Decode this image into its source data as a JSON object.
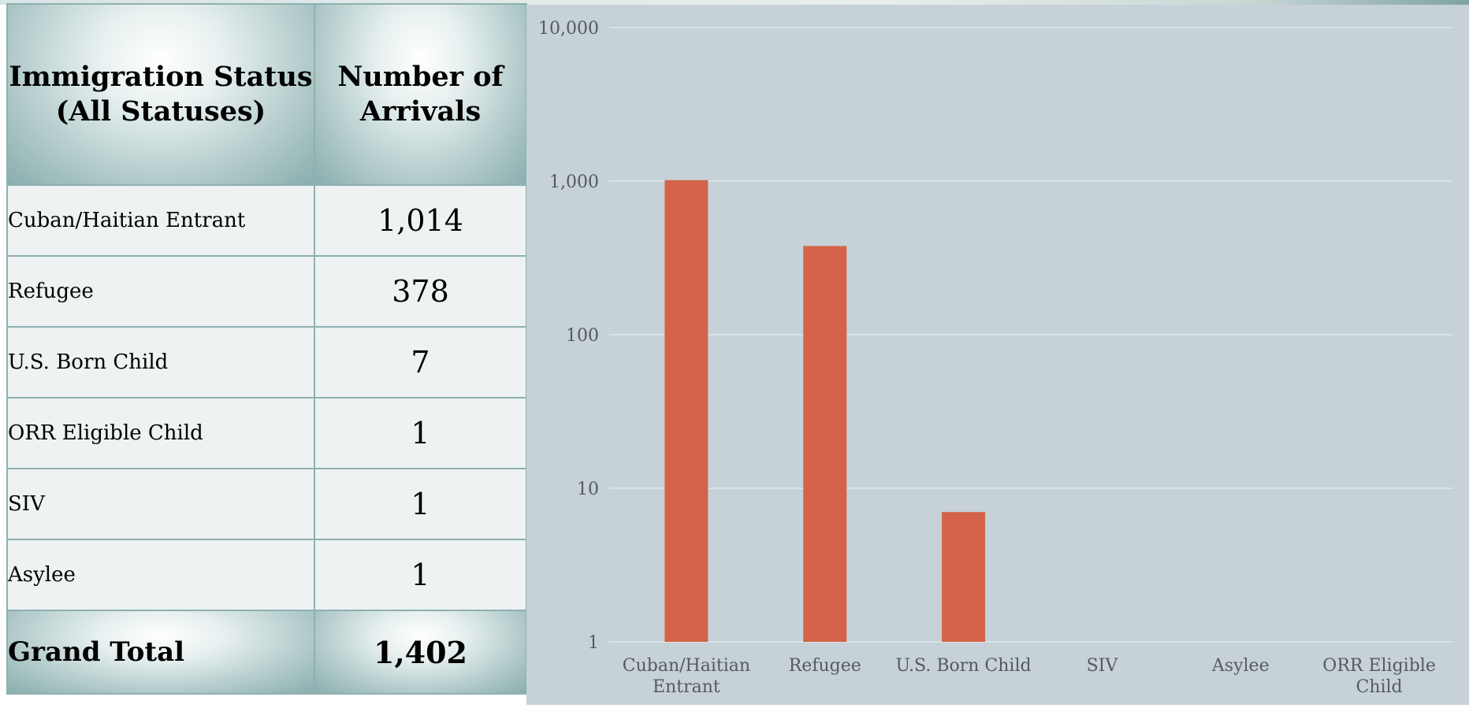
{
  "table": {
    "header_status": "Immigration Status (All Statuses)",
    "header_count": "Number of Arrivals",
    "rows": [
      {
        "status": "Cuban/Haitian Entrant",
        "count": "1,014"
      },
      {
        "status": "Refugee",
        "count": "378"
      },
      {
        "status": "U.S. Born Child",
        "count": "7"
      },
      {
        "status": "ORR Eligible Child",
        "count": "1"
      },
      {
        "status": "SIV",
        "count": "1"
      },
      {
        "status": "Asylee",
        "count": "1"
      }
    ],
    "total_label": "Grand Total",
    "total_value": "1,402"
  },
  "chart_data": {
    "type": "bar",
    "categories": [
      "Cuban/Haitian Entrant",
      "Refugee",
      "U.S. Born Child",
      "SIV",
      "Asylee",
      "ORR Eligible Child"
    ],
    "category_lines": [
      [
        "Cuban/Haitian",
        "Entrant"
      ],
      [
        "Refugee"
      ],
      [
        "U.S. Born Child"
      ],
      [
        "SIV"
      ],
      [
        "Asylee"
      ],
      [
        "ORR Eligible",
        "Child"
      ]
    ],
    "values": [
      1014,
      378,
      7,
      1,
      1,
      1
    ],
    "y_scale": "log",
    "ylim": [
      1,
      10000
    ],
    "y_ticks": [
      1,
      10,
      100,
      1000,
      10000
    ],
    "y_tick_labels": [
      "1",
      "10",
      "100",
      "1,000",
      "10,000"
    ],
    "grid": true,
    "legend": "none",
    "bar_color": "#d46349",
    "background_color": "#c6d1d8",
    "title": "",
    "xlabel": "",
    "ylabel": ""
  }
}
